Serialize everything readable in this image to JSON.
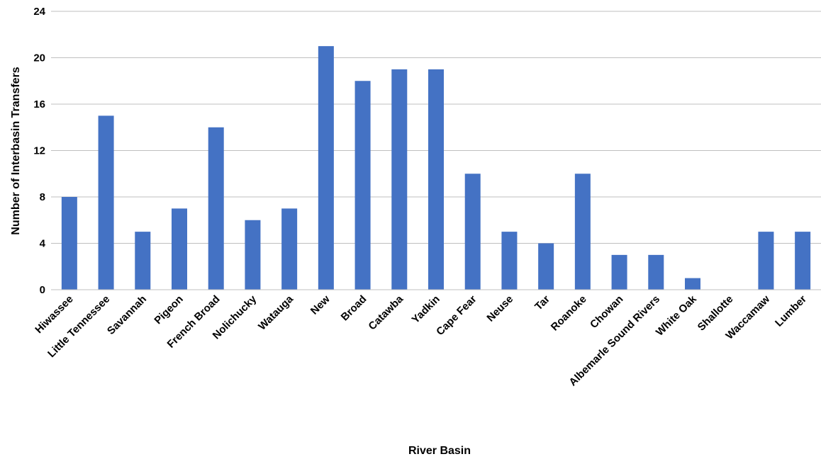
{
  "chart_data": {
    "type": "bar",
    "title": "",
    "xlabel": "River Basin",
    "ylabel": "Number of Interbasin Transfers",
    "ylim": [
      0,
      24
    ],
    "yticks": [
      0,
      4,
      8,
      12,
      16,
      20,
      24
    ],
    "grid": true,
    "legend": "none",
    "bar_color": "#4472c4",
    "categories": [
      "Hiwassee",
      "Little Tennessee",
      "Savannah",
      "Pigeon",
      "French Broad",
      "Nolichucky",
      "Watauga",
      "New",
      "Broad",
      "Catawba",
      "Yadkin",
      "Cape Fear",
      "Neuse",
      "Tar",
      "Roanoke",
      "Chowan",
      "Albemarle Sound Rivers",
      "White Oak",
      "Shallotte",
      "Waccamaw",
      "Lumber"
    ],
    "values": [
      8,
      15,
      5,
      7,
      14,
      6,
      7,
      21,
      18,
      19,
      19,
      10,
      5,
      4,
      10,
      3,
      3,
      1,
      0,
      5,
      5
    ]
  }
}
